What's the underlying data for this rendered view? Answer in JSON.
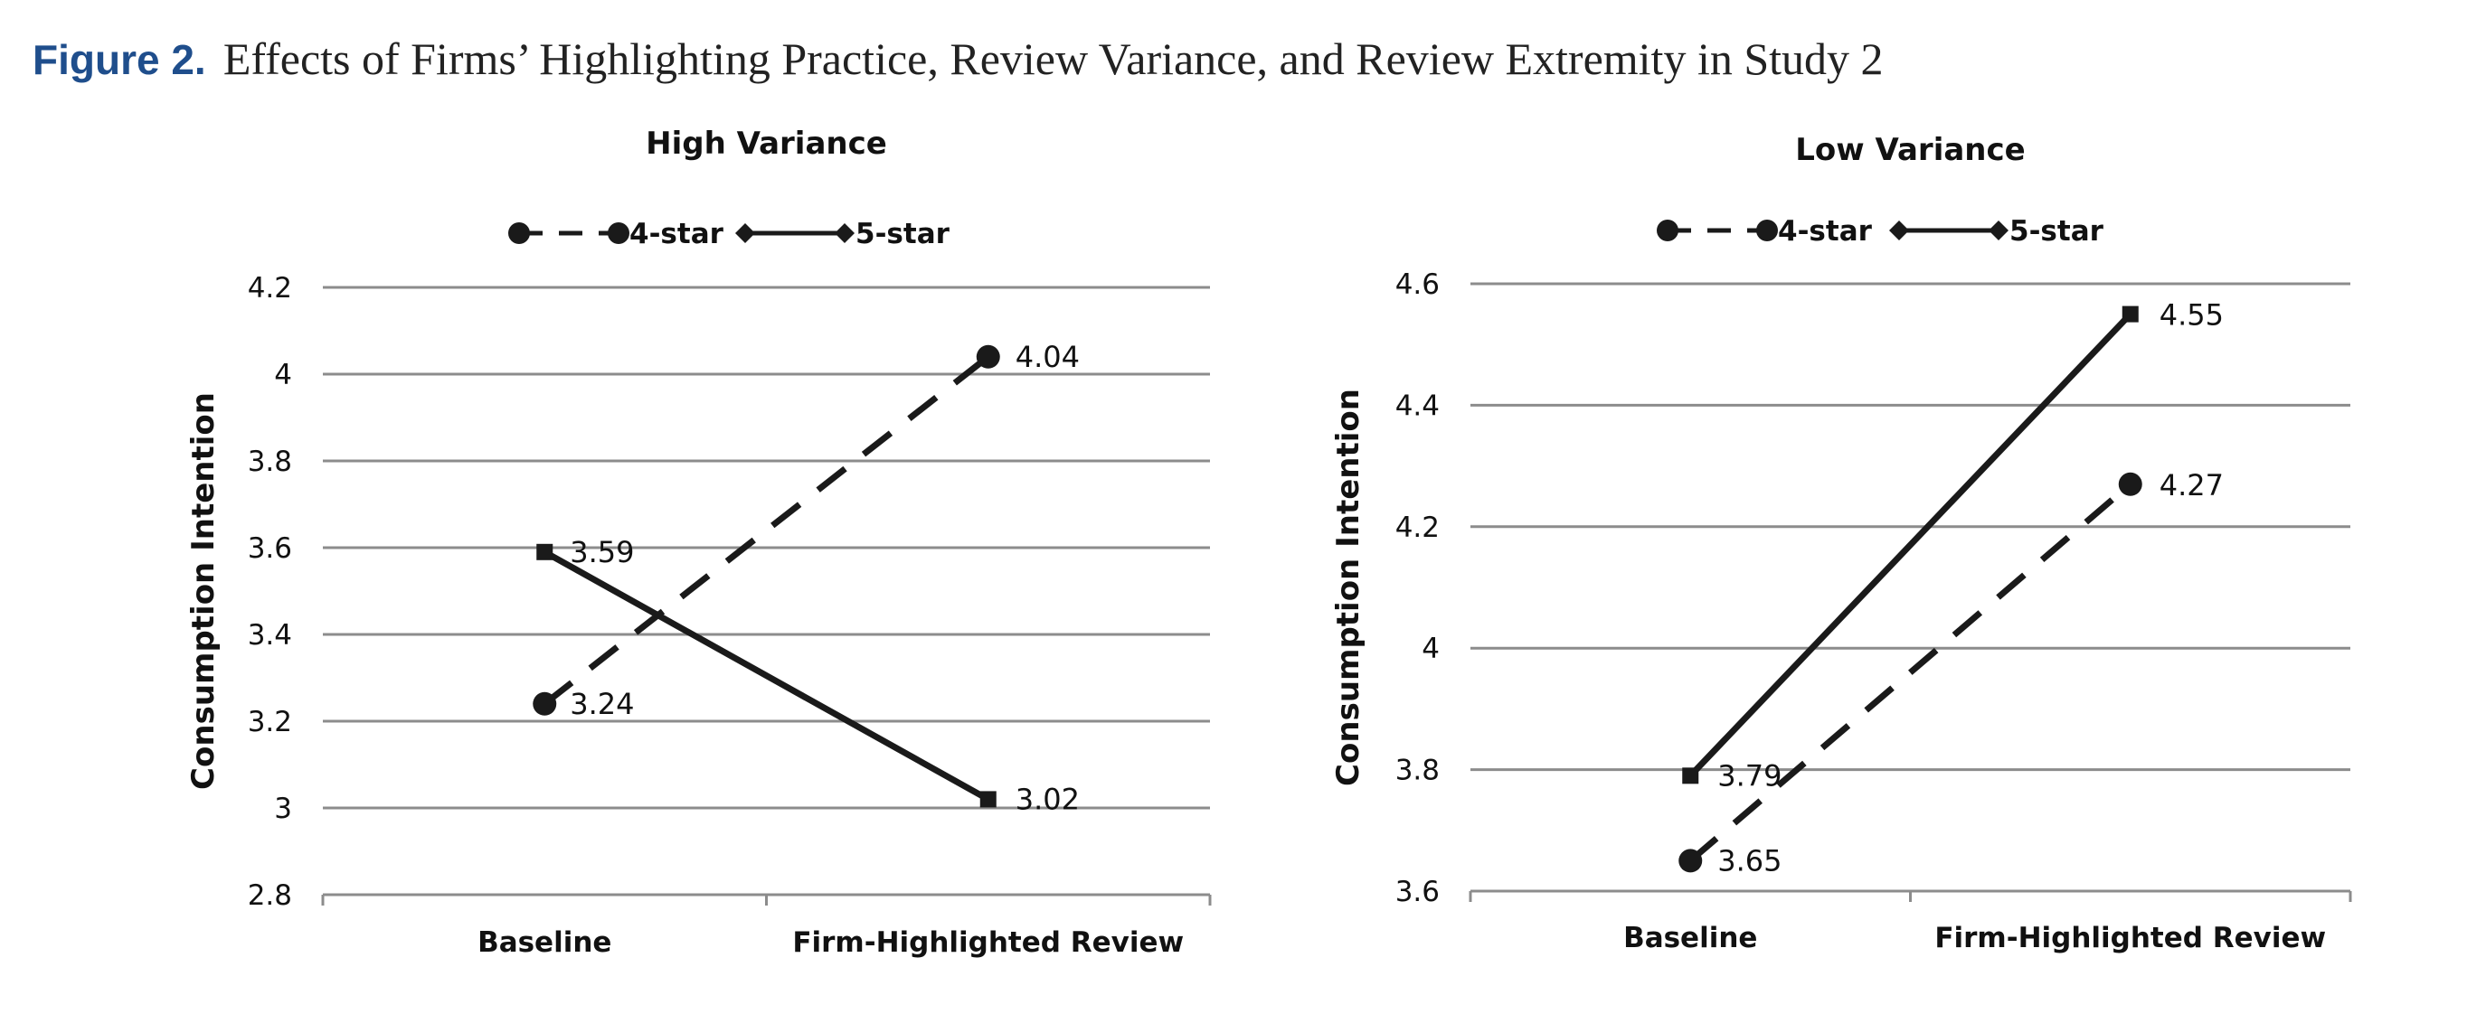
{
  "figure": {
    "label": "Figure 2.",
    "title": "Effects of Firms’ Highlighting Practice, Review Variance, and Review Extremity in Study 2"
  },
  "chart_data": [
    {
      "type": "line",
      "title": "High Variance",
      "xlabel": "",
      "ylabel": "Consumption Intention",
      "categories": [
        "Baseline",
        "Firm-Highlighted Review"
      ],
      "ylim": [
        2.8,
        4.2
      ],
      "yticks": [
        2.8,
        3,
        3.2,
        3.4,
        3.6,
        3.8,
        4,
        4.2
      ],
      "ytick_labels": [
        "2.8",
        "3",
        "3.2",
        "3.4",
        "3.6",
        "3.8",
        "4",
        "4.2"
      ],
      "grid": true,
      "legend_position": "top",
      "series": [
        {
          "name": "4-star",
          "style": "dashed",
          "marker": "circle",
          "values": [
            3.24,
            4.04
          ],
          "labels": [
            "3.24",
            "4.04"
          ]
        },
        {
          "name": "5-star",
          "style": "solid",
          "marker": "square",
          "values": [
            3.59,
            3.02
          ],
          "labels": [
            "3.59",
            "3.02"
          ]
        }
      ]
    },
    {
      "type": "line",
      "title": "Low Variance",
      "xlabel": "",
      "ylabel": "Consumption Intention",
      "categories": [
        "Baseline",
        "Firm-Highlighted Review"
      ],
      "ylim": [
        3.6,
        4.6
      ],
      "yticks": [
        3.6,
        3.8,
        4,
        4.2,
        4.4,
        4.6
      ],
      "ytick_labels": [
        "3.6",
        "3.8",
        "4",
        "4.2",
        "4.4",
        "4.6"
      ],
      "grid": true,
      "legend_position": "top",
      "series": [
        {
          "name": "4-star",
          "style": "dashed",
          "marker": "circle",
          "values": [
            3.65,
            4.27
          ],
          "labels": [
            "3.65",
            "4.27"
          ]
        },
        {
          "name": "5-star",
          "style": "solid",
          "marker": "square",
          "values": [
            3.79,
            4.55
          ],
          "labels": [
            "3.79",
            "4.55"
          ]
        }
      ]
    }
  ],
  "colors": {
    "line": "#1a1a1a",
    "grid": "#8c8c8c",
    "label_blue": "#1f4e8c"
  }
}
